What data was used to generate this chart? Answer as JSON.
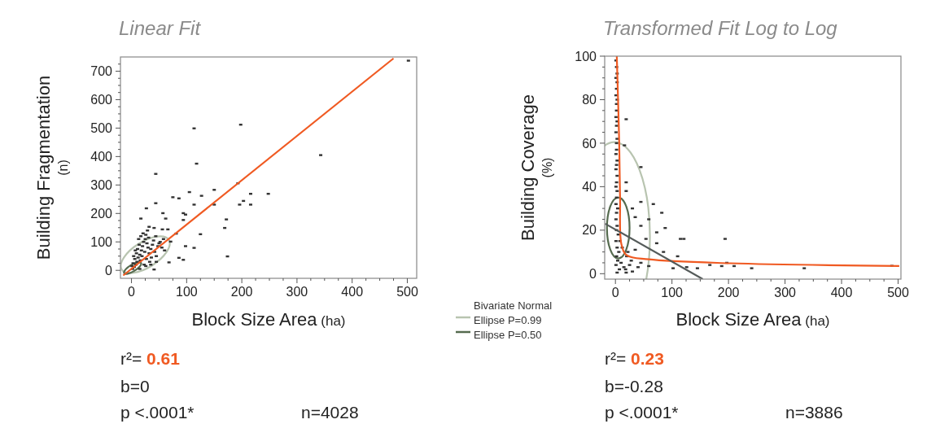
{
  "chart_data": [
    {
      "type": "scatter",
      "title": "Linear Fit",
      "xlabel": "Block Size Area (ha)",
      "ylabel": "Building Fragmentation\n(n)",
      "xlim": [
        -20,
        517
      ],
      "ylim": [
        -28,
        750
      ],
      "xticks": [
        0,
        {
          "value": 25,
          "label": null
        },
        {
          "value": 50,
          "label": null
        },
        {
          "value": 75,
          "label": null
        },
        100,
        {
          "value": 125,
          "label": null
        },
        {
          "value": 150,
          "label": null
        },
        {
          "value": 175,
          "label": null
        },
        200,
        {
          "value": 225,
          "label": null
        },
        {
          "value": 250,
          "label": null
        },
        {
          "value": 275,
          "label": null
        },
        300,
        {
          "value": 325,
          "label": null
        },
        {
          "value": 350,
          "label": null
        },
        {
          "value": 375,
          "label": null
        },
        400,
        {
          "value": 425,
          "label": null
        },
        {
          "value": 450,
          "label": null
        },
        {
          "value": 475,
          "label": null
        },
        500
      ],
      "yticks": [
        0,
        {
          "value": 25,
          "label": null
        },
        {
          "value": 50,
          "label": null
        },
        {
          "value": 75,
          "label": null
        },
        100,
        {
          "value": 125,
          "label": null
        },
        {
          "value": 150,
          "label": null
        },
        {
          "value": 175,
          "label": null
        },
        200,
        {
          "value": 225,
          "label": null
        },
        {
          "value": 250,
          "label": null
        },
        {
          "value": 275,
          "label": null
        },
        300,
        {
          "value": 325,
          "label": null
        },
        {
          "value": 350,
          "label": null
        },
        {
          "value": 375,
          "label": null
        },
        400,
        {
          "value": 425,
          "label": null
        },
        {
          "value": 450,
          "label": null
        },
        {
          "value": 475,
          "label": null
        },
        500,
        {
          "value": 525,
          "label": null
        },
        {
          "value": 550,
          "label": null
        },
        {
          "value": 575,
          "label": null
        },
        600,
        {
          "value": 625,
          "label": null
        },
        {
          "value": 650,
          "label": null
        },
        {
          "value": 675,
          "label": null
        },
        700,
        {
          "value": 725,
          "label": null
        }
      ],
      "annotations": [
        "r²= 0.61",
        "b=0",
        "p <.0001*",
        "n=4028",
        "Bivariate Normal",
        "Ellipse P=0.99",
        "Ellipse P=0.50"
      ],
      "series": [
        {
          "type": "scatter",
          "marker": "square",
          "color": "#333333",
          "x": [
            502,
            113.5,
            198,
            118,
            44,
            343,
            193,
            105,
            150,
            75,
            86,
            216,
            248,
            127,
            44,
            113.5,
            150,
            203,
            216,
            196,
            27,
            94,
            57,
            172,
            169,
            174,
            125,
            113.5,
            98,
            86,
            94,
            68,
            41,
            71,
            66,
            81,
            94,
            98,
            62,
            17,
            32,
            41,
            56,
            2,
            5,
            8,
            10,
            12,
            15,
            18,
            20,
            22,
            25,
            28,
            30,
            32,
            35,
            38,
            40,
            42,
            45,
            48,
            50,
            3,
            6,
            9,
            11,
            14,
            16,
            19,
            24,
            27,
            33,
            36,
            4,
            7,
            13,
            17,
            21,
            26,
            29,
            31,
            44,
            52,
            55,
            58,
            60,
            1,
            23,
            26,
            15,
            35,
            45
          ],
          "values": [
            737,
            499,
            512,
            375,
            339,
            405,
            306,
            275,
            283,
            257,
            253,
            269,
            269,
            262,
            236,
            231,
            231,
            244,
            231,
            231,
            218,
            201,
            201,
            179,
            149,
            49,
            127,
            79,
            85,
            44,
            37,
            28,
            3,
            101,
            144,
            129,
            177,
            196,
            182,
            182,
            153,
            149,
            144,
            5,
            12,
            20,
            30,
            45,
            55,
            70,
            85,
            100,
            110,
            95,
            80,
            60,
            75,
            90,
            105,
            65,
            50,
            85,
            95,
            25,
            40,
            60,
            75,
            90,
            35,
            50,
            65,
            40,
            30,
            45,
            50,
            70,
            110,
            120,
            130,
            125,
            140,
            115,
            120,
            100,
            80,
            110,
            70,
            15,
            20,
            15,
            5,
            20,
            30
          ]
        },
        {
          "type": "line",
          "color": "#f05a22",
          "x": [
            -15,
            475
          ],
          "values": [
            -18,
            745
          ]
        }
      ]
    },
    {
      "type": "scatter",
      "title": "Transformed Fit Log to Log",
      "xlabel": "Block Size Area (ha)",
      "ylabel": "Building Coverage\n(%)",
      "xlim": [
        -19,
        505
      ],
      "ylim": [
        -2.5,
        100
      ],
      "xticks": [
        0,
        {
          "value": 25,
          "label": null
        },
        {
          "value": 50,
          "label": null
        },
        {
          "value": 75,
          "label": null
        },
        100,
        {
          "value": 125,
          "label": null
        },
        {
          "value": 150,
          "label": null
        },
        {
          "value": 175,
          "label": null
        },
        200,
        {
          "value": 225,
          "label": null
        },
        {
          "value": 250,
          "label": null
        },
        {
          "value": 275,
          "label": null
        },
        300,
        {
          "value": 325,
          "label": null
        },
        {
          "value": 350,
          "label": null
        },
        {
          "value": 375,
          "label": null
        },
        400,
        {
          "value": 425,
          "label": null
        },
        {
          "value": 450,
          "label": null
        },
        {
          "value": 475,
          "label": null
        },
        500
      ],
      "yticks": [
        0,
        {
          "value": 5,
          "label": null
        },
        {
          "value": 10,
          "label": null
        },
        {
          "value": 15,
          "label": null
        },
        20,
        {
          "value": 25,
          "label": null
        },
        {
          "value": 30,
          "label": null
        },
        {
          "value": 35,
          "label": null
        },
        40,
        {
          "value": 45,
          "label": null
        },
        {
          "value": 50,
          "label": null
        },
        {
          "value": 55,
          "label": null
        },
        60,
        {
          "value": 65,
          "label": null
        },
        {
          "value": 70,
          "label": null
        },
        {
          "value": 75,
          "label": null
        },
        80,
        {
          "value": 85,
          "label": null
        },
        {
          "value": 90,
          "label": null
        },
        {
          "value": 95,
          "label": null
        },
        100
      ],
      "annotations": [
        "r²= 0.23",
        "b=-0.28",
        "p <.0001*",
        "n=3886"
      ],
      "series": [
        {
          "type": "scatter",
          "marker": "square",
          "color": "#333333",
          "x": [
            19,
            16,
            45,
            19,
            19,
            67,
            82,
            45,
            45,
            88,
            73,
            115,
            121,
            194,
            73,
            85,
            110,
            145,
            167,
            188,
            210,
            241,
            334,
            489,
            197,
            102,
            126,
            35,
            30,
            59,
            54,
            35,
            59,
            19,
            1,
            2,
            3,
            1,
            3,
            2,
            1,
            3,
            2,
            2,
            1,
            3,
            2,
            1,
            3,
            2,
            2,
            1,
            3,
            2,
            1,
            3,
            2,
            1,
            3,
            2,
            1,
            4,
            2,
            1,
            3,
            2,
            5,
            1,
            3,
            6,
            2,
            4,
            1,
            7,
            3,
            10,
            15,
            20,
            25,
            12,
            8,
            18,
            28,
            30,
            40,
            45,
            22
          ],
          "values": [
            71,
            59,
            49,
            42,
            38,
            32,
            28,
            33,
            22,
            21,
            19,
            16,
            16,
            16,
            14,
            10,
            8,
            2.5,
            4,
            3.5,
            3.5,
            2.5,
            2.5,
            3.6,
            5,
            2.5,
            3,
            26,
            30,
            25,
            16,
            11,
            3.5,
            0.5,
            98,
            95,
            92,
            90,
            88,
            85,
            82,
            80,
            78,
            75,
            72,
            70,
            68,
            65,
            62,
            60,
            57,
            55,
            52,
            50,
            48,
            45,
            42,
            40,
            38,
            35,
            32,
            30,
            28,
            25,
            22,
            20,
            18,
            15,
            12,
            10,
            8,
            6,
            4,
            2,
            0.5,
            5,
            3,
            8,
            4,
            12,
            15,
            2,
            6,
            1,
            3,
            5,
            10
          ]
        },
        {
          "type": "line",
          "color": "#f05a22",
          "x": [
            2.4,
            6.7,
            8.2,
            10.6,
            20,
            59,
            203,
            502
          ],
          "values": [
            100,
            60,
            35,
            13.5,
            8.5,
            6.6,
            4.8,
            3.5
          ]
        },
        {
          "type": "line",
          "color": "#555b5a",
          "x": [
            -18.3,
            154.5
          ],
          "values": [
            23,
            -2.5
          ]
        }
      ]
    }
  ]
}
